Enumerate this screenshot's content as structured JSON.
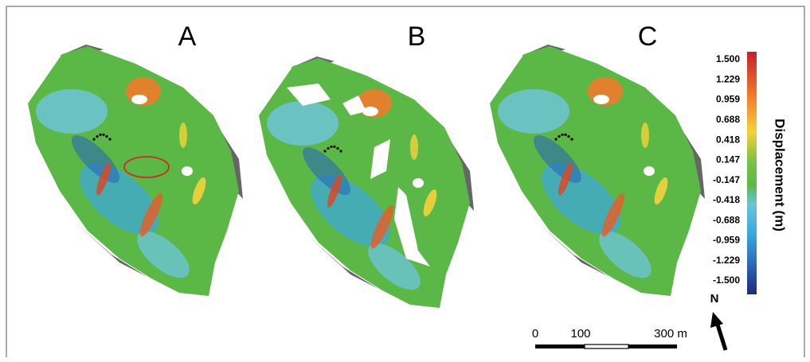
{
  "panels": [
    {
      "label": "A"
    },
    {
      "label": "B"
    },
    {
      "label": "C"
    }
  ],
  "colorbar": {
    "title": "Displacement (m)",
    "labels": [
      "1.500",
      "1.229",
      "0.959",
      "0.688",
      "0.418",
      "0.147",
      "-0.147",
      "-0.418",
      "-0.688",
      "-0.959",
      "-1.229",
      "-1.500"
    ]
  },
  "scale_bar": {
    "labels": [
      "0",
      "100",
      "300 m"
    ]
  },
  "north": "N"
}
